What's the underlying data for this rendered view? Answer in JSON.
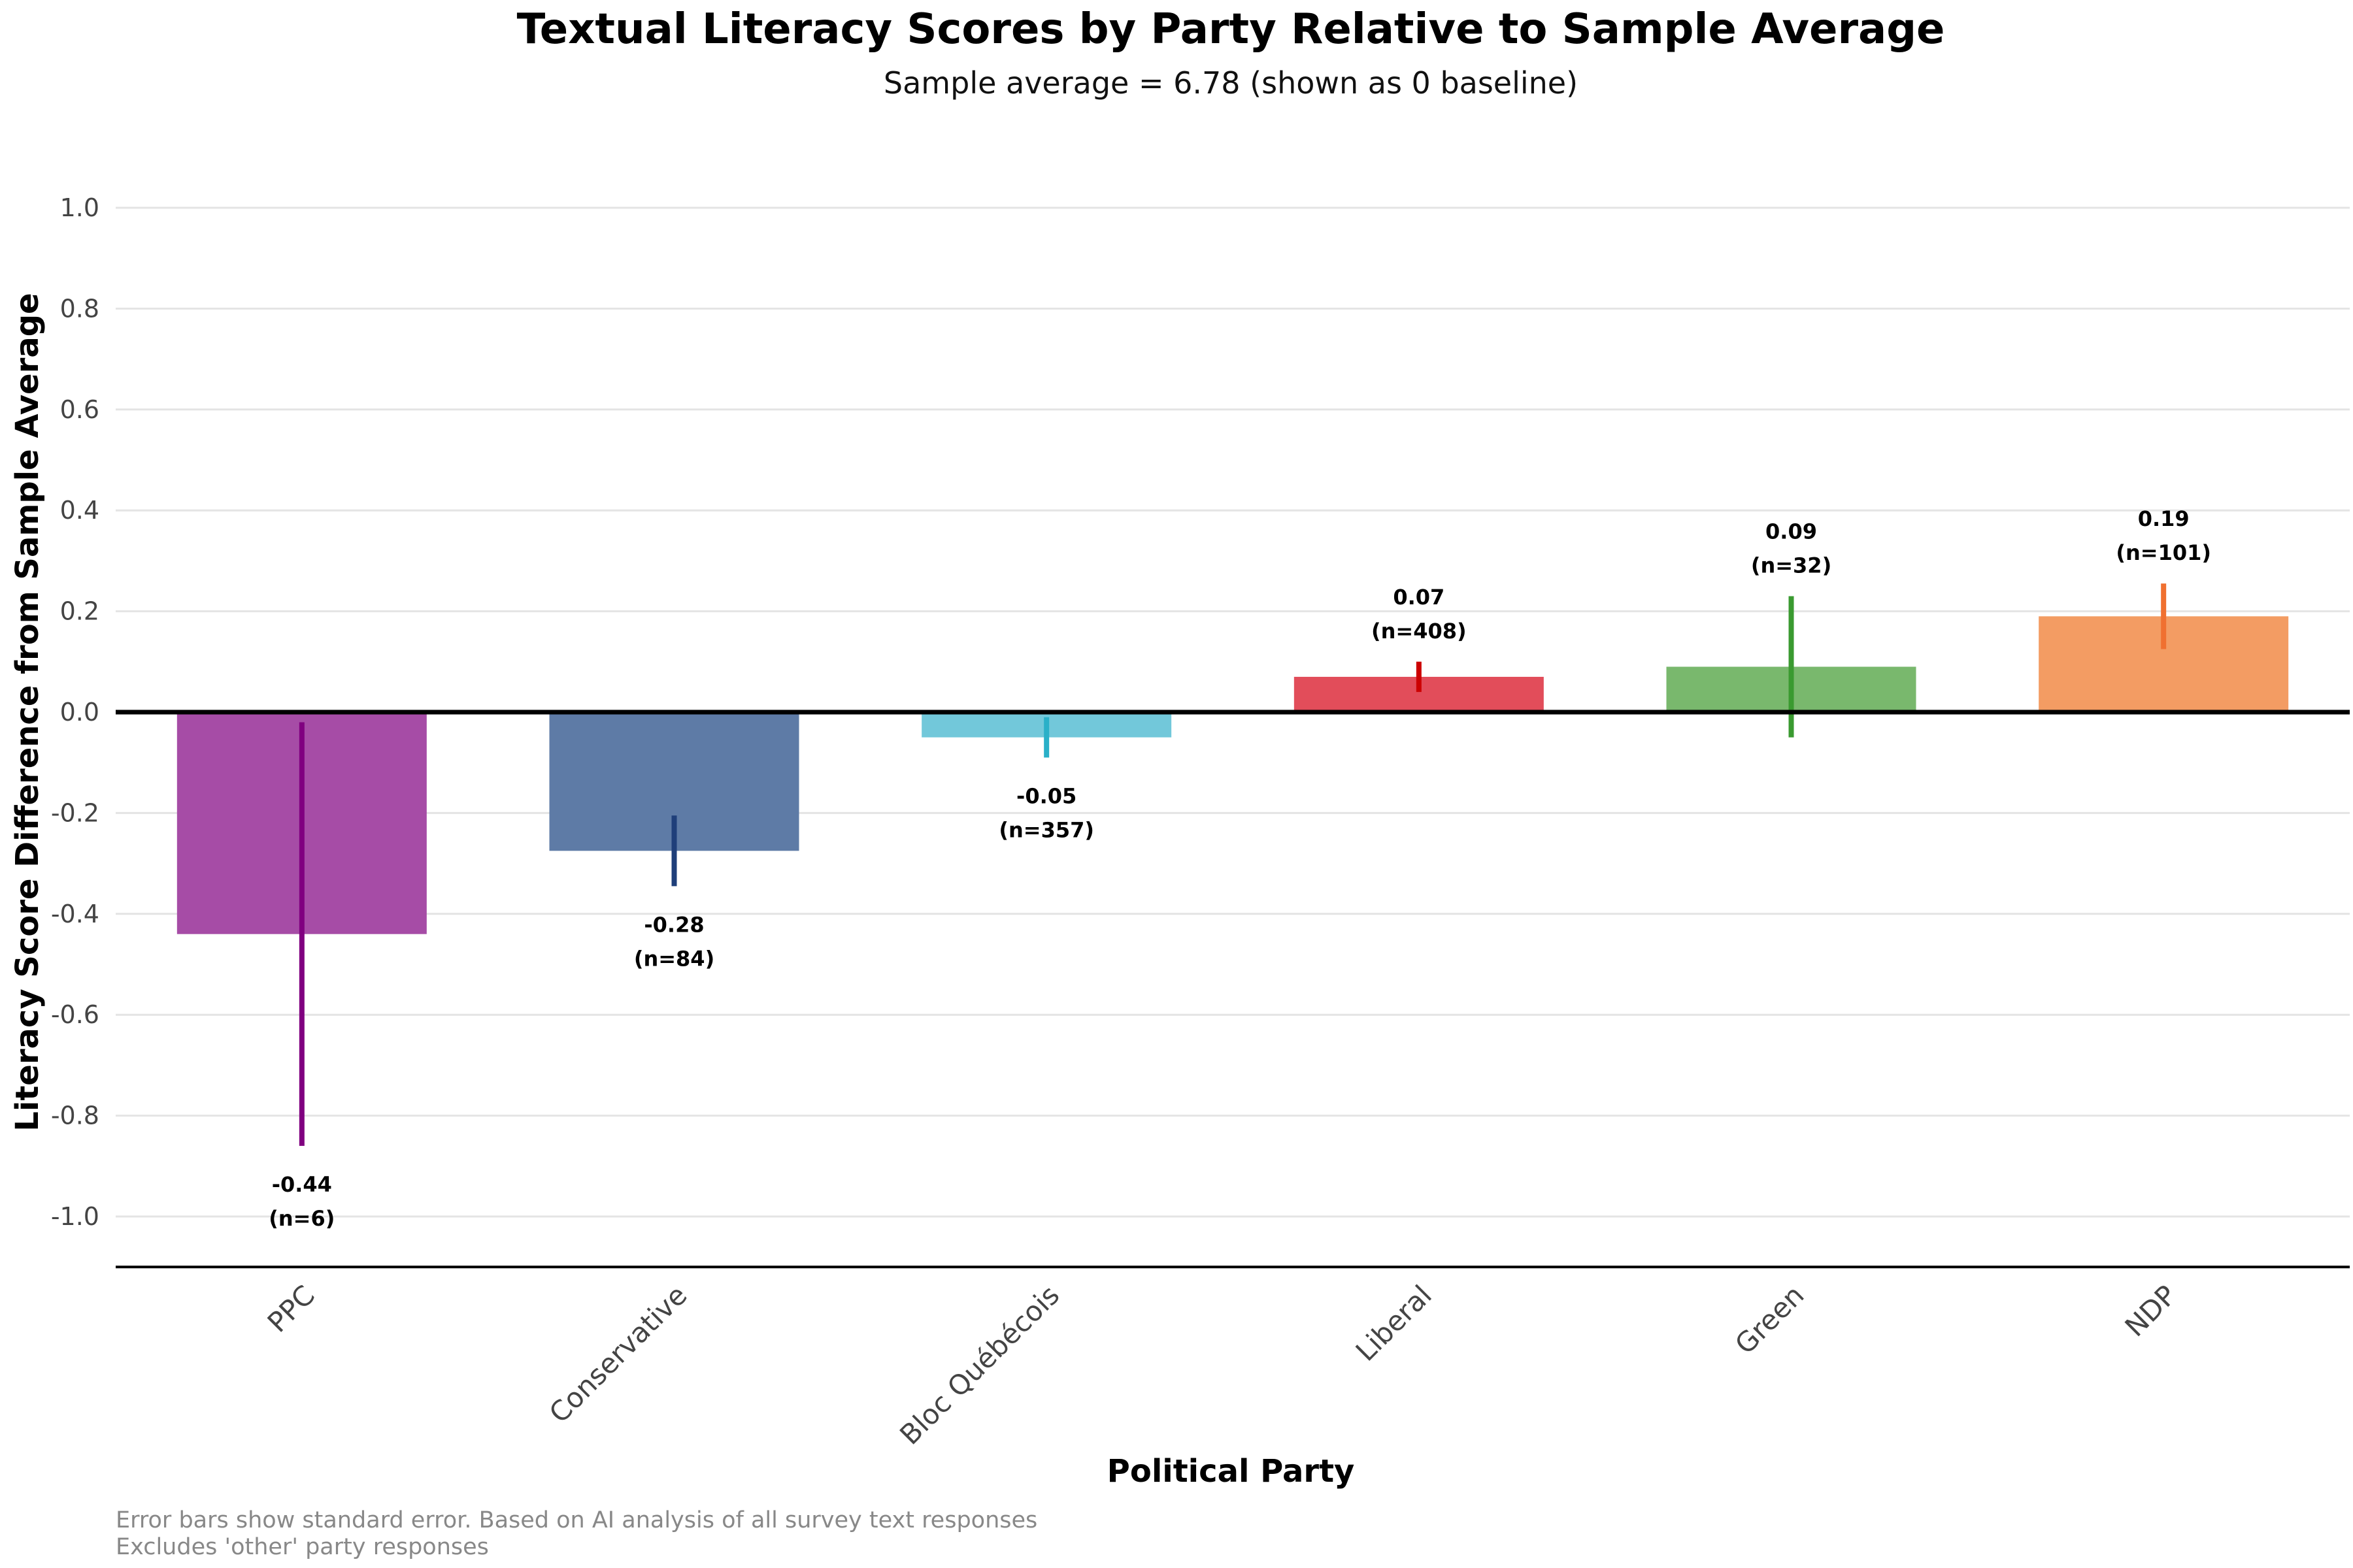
{
  "chart_data": {
    "type": "bar",
    "title": "Textual Literacy Scores by Party Relative to Sample Average",
    "subtitle": "Sample average = 6.78 (shown as 0 baseline)",
    "xlabel": "Political Party",
    "ylabel": "Literacy Score Difference from Sample Average",
    "ylim": [
      -1.1,
      1.05
    ],
    "yticks": [
      -1.0,
      -0.8,
      -0.6,
      -0.4,
      -0.2,
      0.0,
      0.2,
      0.4,
      0.6,
      0.8,
      1.0
    ],
    "ytick_labels": [
      "-1.0",
      "-0.8",
      "-0.6",
      "-0.4",
      "-0.2",
      "0.0",
      "0.2",
      "0.4",
      "0.6",
      "0.8",
      "1.0"
    ],
    "grid": "horizontal",
    "baseline": 0,
    "categories": [
      "PPC",
      "Conservative",
      "Bloc Québécois",
      "Liberal",
      "Green",
      "NDP"
    ],
    "values": [
      -0.44,
      -0.275,
      -0.05,
      0.07,
      0.09,
      0.19
    ],
    "errors": [
      0.42,
      0.07,
      0.04,
      0.03,
      0.14,
      0.065
    ],
    "value_labels": [
      "-0.44",
      "-0.28",
      "-0.05",
      "0.07",
      "0.09",
      "0.19"
    ],
    "n_labels": [
      "(n=6)",
      "(n=84)",
      "(n=357)",
      "(n=408)",
      "(n=32)",
      "(n=101)"
    ],
    "bar_colors": [
      "#a64ca6",
      "#5e7ba6",
      "#72c8da",
      "#e24d5a",
      "#79b86d",
      "#f39c63"
    ],
    "error_colors": [
      "#800080",
      "#1f3f7a",
      "#2ab0c8",
      "#cc0000",
      "#3a9a30",
      "#f07030"
    ],
    "caption_lines": [
      "Error bars show standard error. Based on AI analysis of all survey text responses",
      "Excludes 'other' party responses"
    ]
  }
}
